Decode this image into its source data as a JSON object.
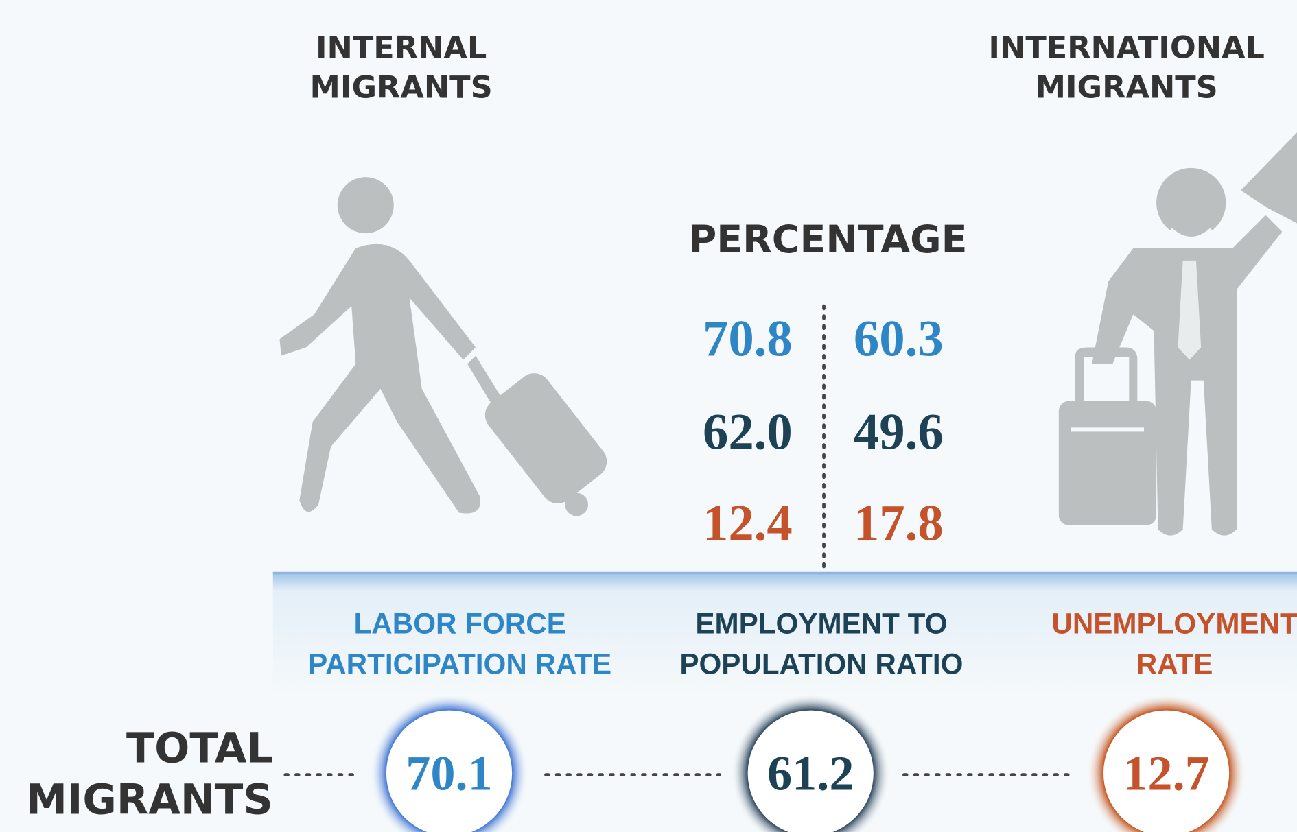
{
  "columns": [
    {
      "title_lines": [
        "INTERNAL",
        "MIGRANTS"
      ]
    },
    {
      "title_lines": [
        "INTERNATIONAL",
        "MIGRANTS"
      ]
    }
  ],
  "percentage_title": "PERCENTAGE",
  "rows": [
    {
      "internal": "70.8",
      "international": "60.3"
    },
    {
      "internal": "62.0",
      "international": "49.6"
    },
    {
      "internal": "12.4",
      "international": "17.8"
    }
  ],
  "indicators": [
    {
      "label_lines": [
        "LABOR FORCE",
        "PARTICIPATION RATE"
      ],
      "total": "70.1"
    },
    {
      "label_lines": [
        "EMPLOYMENT TO",
        "POPULATION RATIO"
      ],
      "total": "61.2"
    },
    {
      "label_lines": [
        "UNEMPLOYMENT",
        "RATE"
      ],
      "total": "12.7"
    }
  ],
  "total_label_lines": [
    "TOTAL",
    "MIGRANTS"
  ]
}
